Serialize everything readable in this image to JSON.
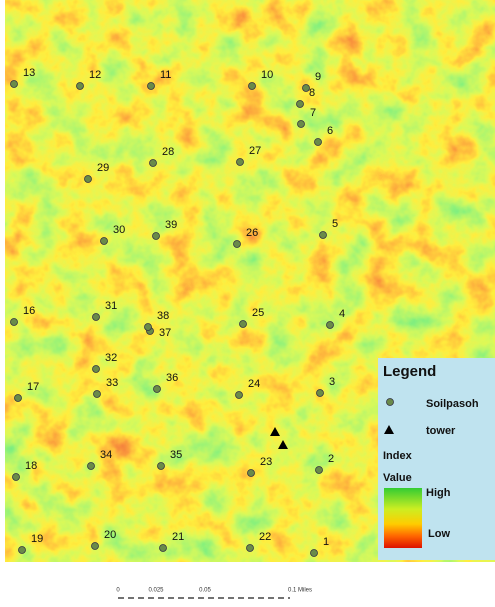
{
  "points": [
    {
      "label": "1"
    },
    {
      "label": "2"
    },
    {
      "label": "3"
    },
    {
      "label": "4"
    },
    {
      "label": "5"
    },
    {
      "label": "6"
    },
    {
      "label": "7"
    },
    {
      "label": "8"
    },
    {
      "label": "9"
    },
    {
      "label": "10"
    },
    {
      "label": "11"
    },
    {
      "label": "12"
    },
    {
      "label": "13"
    },
    {
      "label": "16"
    },
    {
      "label": "17"
    },
    {
      "label": "18"
    },
    {
      "label": "19"
    },
    {
      "label": "20"
    },
    {
      "label": "21"
    },
    {
      "label": "22"
    },
    {
      "label": "23"
    },
    {
      "label": "24"
    },
    {
      "label": "25"
    },
    {
      "label": "26"
    },
    {
      "label": "27"
    },
    {
      "label": "28"
    },
    {
      "label": "29"
    },
    {
      "label": "30"
    },
    {
      "label": "31"
    },
    {
      "label": "32"
    },
    {
      "label": "33"
    },
    {
      "label": "34"
    },
    {
      "label": "35"
    },
    {
      "label": "36"
    },
    {
      "label": "37"
    },
    {
      "label": "38"
    },
    {
      "label": "39"
    }
  ],
  "legend": {
    "title": "Legend",
    "points": "Soilpasoh",
    "towers": "tower",
    "index": "Index",
    "value": "Value",
    "high": "High",
    "low": "Low"
  },
  "scale_bar": {
    "labels": [
      "0",
      "0.025",
      "0.05",
      "0.1 Miles"
    ]
  }
}
